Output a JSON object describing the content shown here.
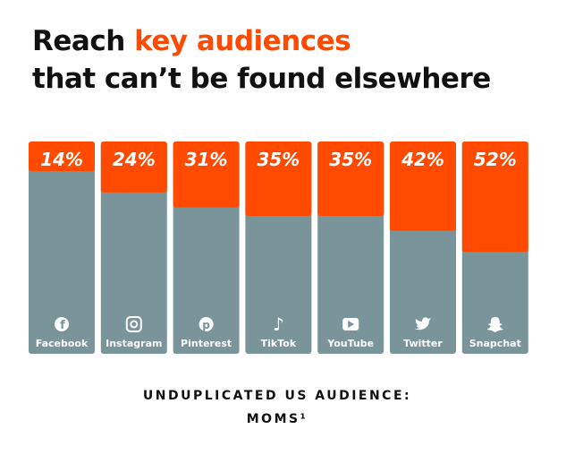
{
  "chart_data": {
    "type": "bar",
    "title_parts": [
      "Reach ",
      "key audiences",
      "that can’t be found elsewhere"
    ],
    "caption": [
      "UNDUPLICATED US AUDIENCE:",
      "MOMS¹"
    ],
    "categories": [
      "Facebook",
      "Instagram",
      "Pinterest",
      "TikTok",
      "YouTube",
      "Twitter",
      "Snapchat"
    ],
    "values": [
      14,
      24,
      31,
      35,
      35,
      42,
      52
    ],
    "value_labels": [
      "14%",
      "24%",
      "31%",
      "35%",
      "35%",
      "42%",
      "52%"
    ],
    "color": "#ff4a00",
    "ylim": [
      0,
      100
    ]
  }
}
